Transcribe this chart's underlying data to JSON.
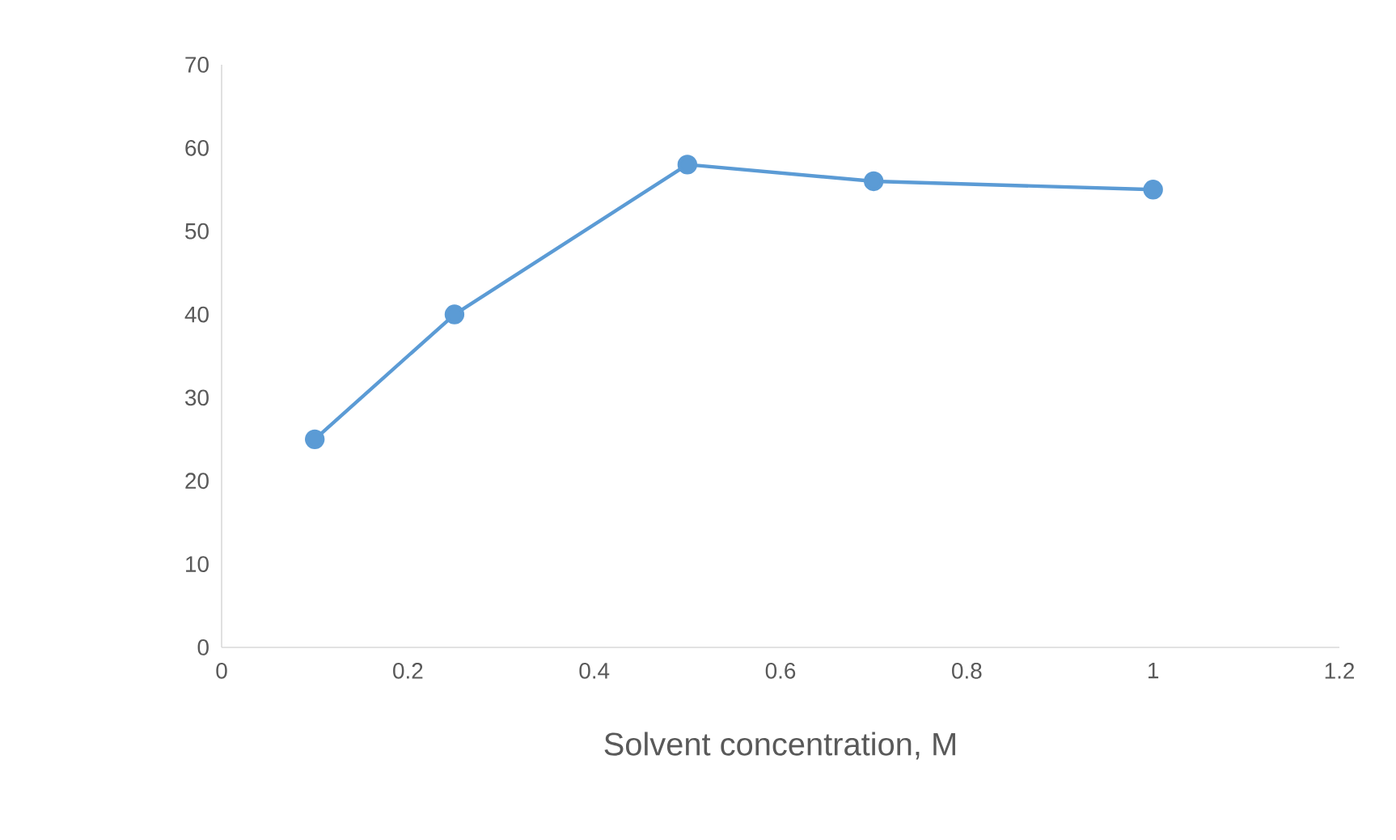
{
  "chart_data": {
    "type": "line",
    "xlabel": "Solvent concentration, M",
    "x": [
      0.1,
      0.25,
      0.5,
      0.7,
      1
    ],
    "series": [
      {
        "color": "#5b9bd5",
        "values": [
          25,
          40,
          58,
          56,
          55
        ]
      }
    ],
    "xlim": [
      0,
      1.2
    ],
    "xticks": [
      0,
      0.2,
      0.4,
      0.6,
      0.8,
      1,
      1.2
    ],
    "ylim": [
      0,
      70
    ],
    "yticks": [
      0,
      10,
      20,
      30,
      40,
      50,
      60,
      70
    ],
    "marker": "circle",
    "line_style": "solid"
  }
}
